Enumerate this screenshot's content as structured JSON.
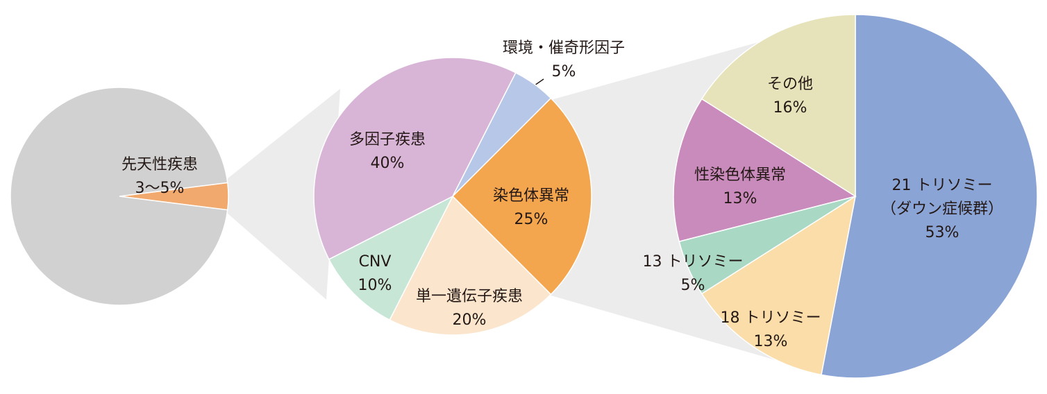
{
  "chart_data": [
    {
      "type": "pie",
      "categories": [
        "先天性疾患",
        null
      ],
      "values": [
        4,
        96
      ],
      "value_labels": [
        "3〜5%",
        null
      ],
      "colors": [
        "#f2a96e",
        "#d1d1d1"
      ]
    },
    {
      "type": "pie",
      "categories": [
        "環境・催奇形因子",
        "染色体異常",
        "単一遺伝子疾患",
        "CNV",
        "多因子疾患"
      ],
      "values": [
        5,
        25,
        20,
        10,
        40
      ],
      "value_labels": [
        "5%",
        "25%",
        "20%",
        "10%",
        "40%"
      ],
      "colors": [
        "#b7c7e7",
        "#f4a64e",
        "#fbe6cd",
        "#c7e6d6",
        "#d8b5d7"
      ]
    },
    {
      "type": "pie",
      "categories": [
        "21 トリソミー\n（ダウン症候群）",
        "18 トリソミー",
        "13 トリソミー",
        "性染色体異常",
        "その他"
      ],
      "values": [
        53,
        13,
        5,
        13,
        16
      ],
      "value_labels": [
        "53%",
        "13%",
        "5%",
        "13%",
        "16%"
      ],
      "colors": [
        "#8ba4d6",
        "#fbdda9",
        "#a9d9c5",
        "#c98bbb",
        "#e6e2b9"
      ]
    }
  ]
}
